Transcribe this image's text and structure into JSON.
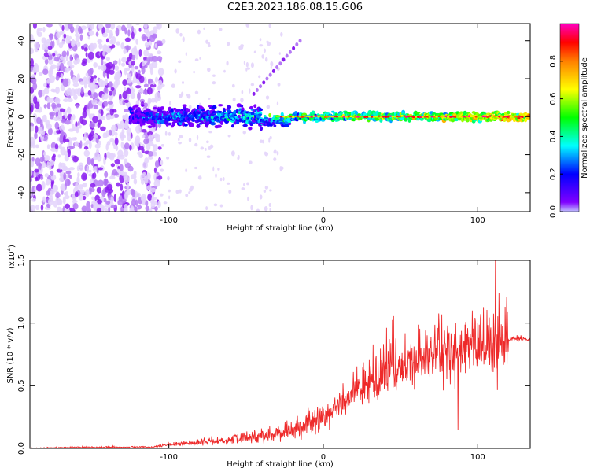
{
  "title": "C2E3.2023.186.08.15.G06",
  "colors": {
    "snr_line": "#ee2a2a",
    "axis": "#000000",
    "background": "#ffffff"
  },
  "chart_data": [
    {
      "type": "heatmap",
      "xlabel": "Height of straight line (km)",
      "ylabel": "Frequency (Hz)",
      "xlim": [
        -190,
        134
      ],
      "ylim": [
        -50,
        49
      ],
      "xticks": [
        -100,
        0,
        100
      ],
      "yticks": [
        -40,
        -20,
        0,
        20,
        40
      ],
      "colorbar": {
        "label": "Normalized spectral amplitude",
        "range": [
          0.0,
          1.0
        ],
        "ticks": [
          0.0,
          0.2,
          0.4,
          0.6,
          0.8
        ],
        "colormap": "rainbow (purple-blue-cyan-green-yellow-red-magenta)"
      },
      "features": {
        "noise_region_x": [
          -190,
          -105
        ],
        "main_trace_x": [
          -125,
          134
        ],
        "main_trace_frequency_hz": 0,
        "branch_start": [
          -45,
          12
        ],
        "branch_end": [
          -15,
          40
        ]
      }
    },
    {
      "type": "line",
      "xlabel": "Height of straight line (km)",
      "ylabel": "SNR (10 * v/v)",
      "y_multiplier_label": "(x10",
      "y_multiplier_exp": "4",
      "y_multiplier_close": ")",
      "xlim": [
        -190,
        134
      ],
      "ylim": [
        0.0,
        1.5
      ],
      "xticks": [
        -100,
        0,
        100
      ],
      "yticks": [
        "0.0",
        "0.5",
        "1.0",
        "1.5"
      ],
      "series": [
        {
          "color": "#ee2a2a",
          "x": [
            -190,
            -150,
            -110,
            -100,
            -80,
            -60,
            -40,
            -20,
            -10,
            0,
            10,
            20,
            30,
            40,
            50,
            60,
            70,
            80,
            85,
            90,
            100,
            110,
            120,
            134
          ],
          "y": [
            0.0,
            0.01,
            0.01,
            0.03,
            0.05,
            0.07,
            0.1,
            0.15,
            0.2,
            0.25,
            0.34,
            0.45,
            0.55,
            0.6,
            0.62,
            0.7,
            0.74,
            0.78,
            0.77,
            0.8,
            0.8,
            0.83,
            0.88,
            0.87
          ]
        }
      ]
    }
  ]
}
